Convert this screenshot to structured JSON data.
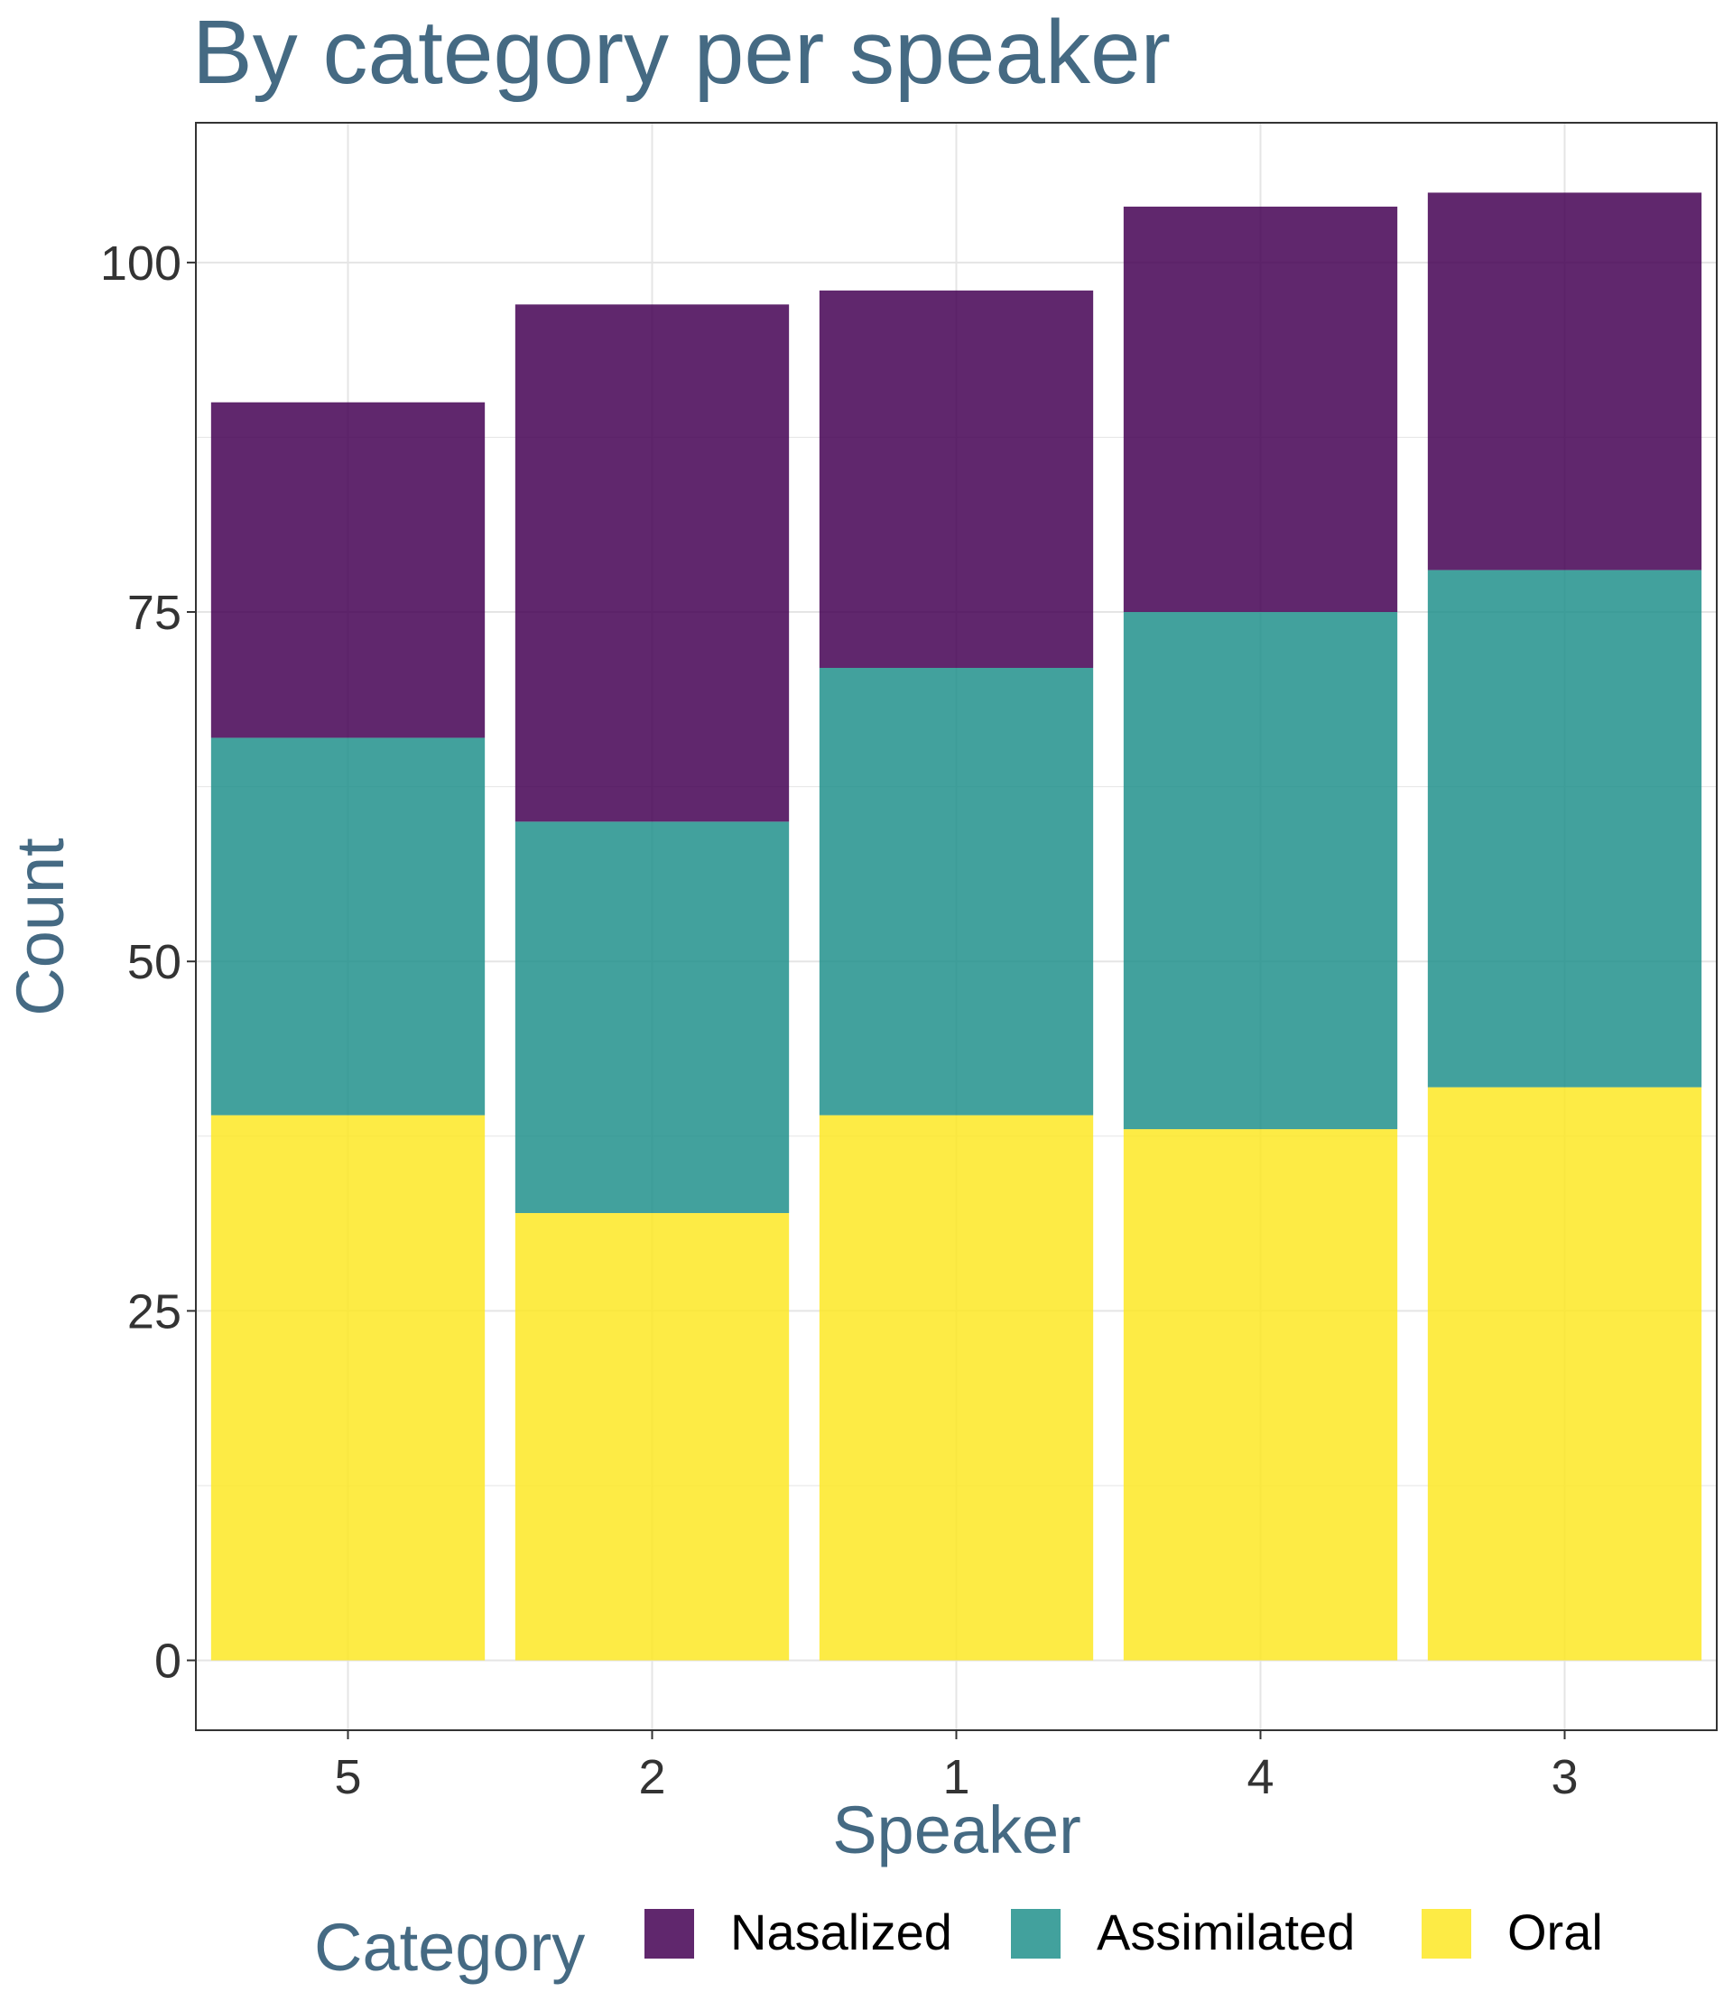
{
  "chart_data": {
    "type": "bar",
    "stacked": true,
    "title": "By category per speaker",
    "xlabel": "Speaker",
    "ylabel": "Count",
    "categories": [
      "5",
      "2",
      "1",
      "4",
      "3"
    ],
    "series": [
      {
        "name": "Oral",
        "values": [
          39,
          32,
          39,
          38,
          41
        ],
        "color": "#FDE725"
      },
      {
        "name": "Assimilated",
        "values": [
          27,
          28,
          32,
          37,
          37
        ],
        "color": "#21908C"
      },
      {
        "name": "Nasalized",
        "values": [
          24,
          37,
          27,
          29,
          27
        ],
        "color": "#440154"
      }
    ],
    "ylim": [
      -5,
      110
    ],
    "y_ticks": [
      0,
      25,
      50,
      75,
      100
    ],
    "grid": true,
    "legend": {
      "title": "Category",
      "position": "bottom",
      "order": [
        "Nasalized",
        "Assimilated",
        "Oral"
      ]
    }
  },
  "colors": {
    "title": "#456A83",
    "axis_title": "#456A83",
    "tick_label": "#333333",
    "grid": "#E5E5E5",
    "panel_border": "#333333",
    "legend_text": "#000000"
  }
}
